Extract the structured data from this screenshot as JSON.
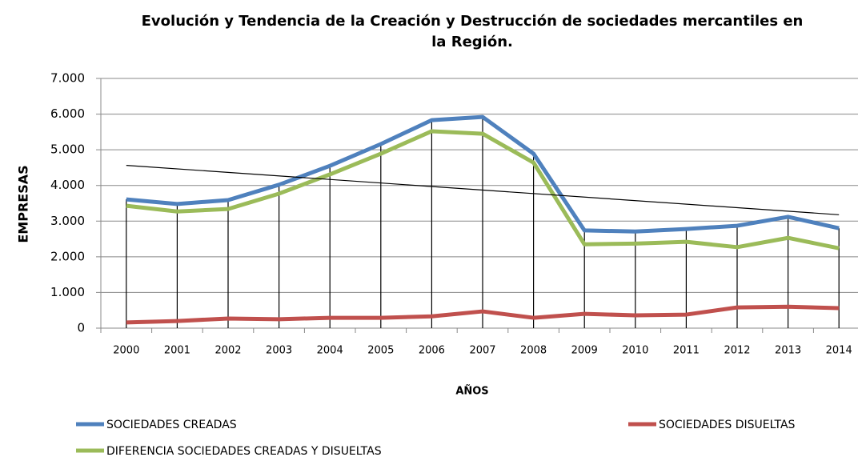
{
  "chart_data": {
    "type": "line",
    "title": "Evolución y Tendencia de la Creación y Destrucción de sociedades mercantiles en la Región.",
    "x_label": "AÑOS",
    "y_label": "EMPRESAS",
    "categories": [
      "2000",
      "2001",
      "2002",
      "2003",
      "2004",
      "2005",
      "2006",
      "2007",
      "2008",
      "2009",
      "2010",
      "2011",
      "2012",
      "2013",
      "2014"
    ],
    "series": [
      {
        "name": "SOCIEDADES CREADAS",
        "color": "#4f81bd",
        "trendline": "linear",
        "values": [
          3610,
          3480,
          3590,
          4020,
          4550,
          5160,
          5830,
          5920,
          4890,
          2740,
          2710,
          2780,
          2870,
          3120,
          2800
        ]
      },
      {
        "name": "SOCIEDADES DISUELTAS",
        "color": "#c0504d",
        "values": [
          160,
          200,
          270,
          250,
          290,
          290,
          330,
          470,
          290,
          400,
          360,
          380,
          580,
          600,
          560
        ]
      },
      {
        "name": "DIFERENCIA SOCIEDADES CREADAS Y DISUELTAS",
        "color": "#9bbb59",
        "values": [
          3430,
          3270,
          3340,
          3770,
          4310,
          4890,
          5520,
          5450,
          4640,
          2350,
          2370,
          2420,
          2270,
          2530,
          2240
        ]
      }
    ],
    "ylim": [
      0,
      7000
    ],
    "yticks": [
      0,
      {
        "value": 1000,
        "label": "1.000"
      },
      {
        "value": 2000,
        "label": "2.000"
      },
      {
        "value": 3000,
        "label": "3.000"
      },
      {
        "value": 4000,
        "label": "4.000"
      },
      {
        "value": 5000,
        "label": "5.000"
      },
      {
        "value": 6000,
        "label": "6.000"
      },
      {
        "value": 7000,
        "label": "7.000"
      }
    ],
    "grid": true,
    "drop_lines": true,
    "legend": "bottom"
  }
}
